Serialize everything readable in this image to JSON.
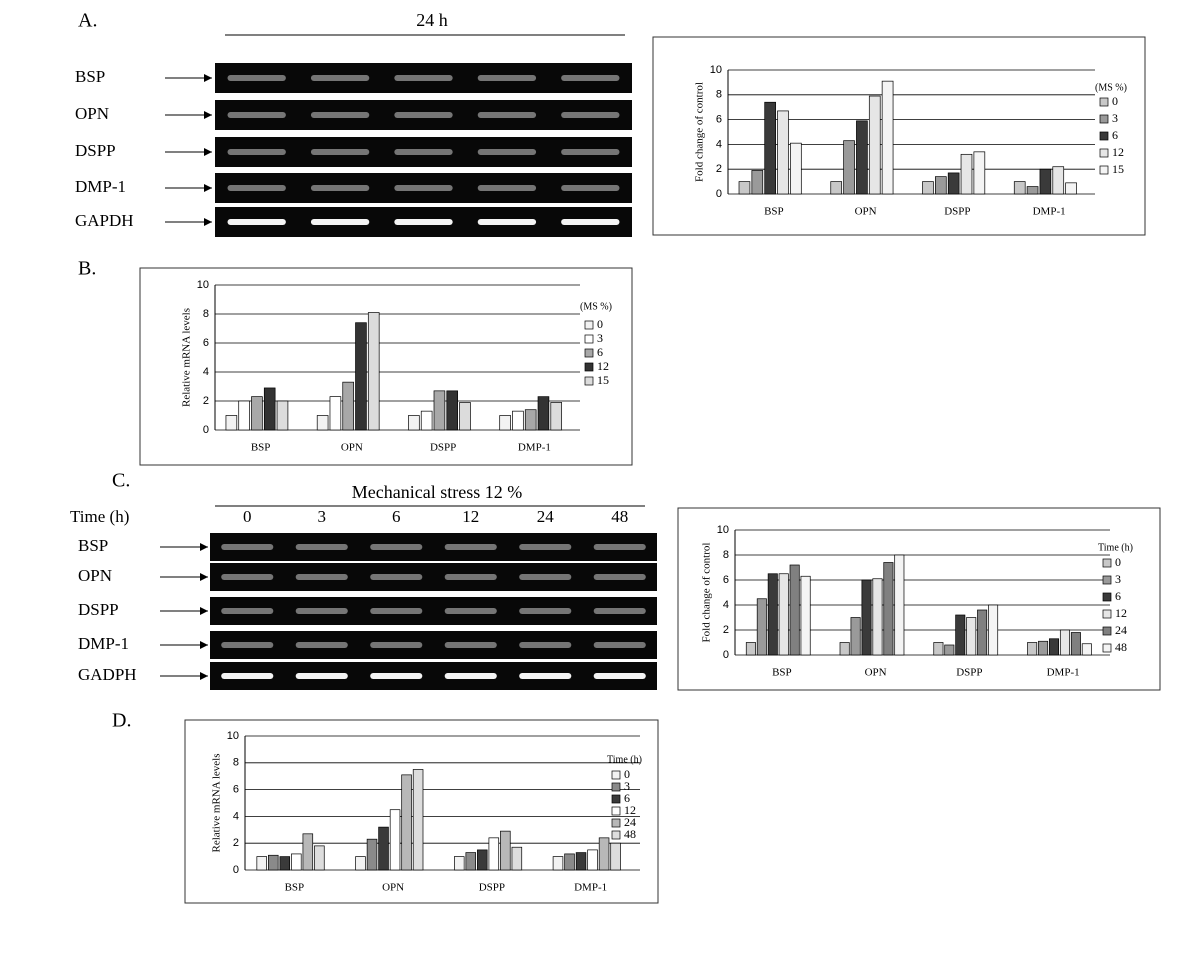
{
  "panels": {
    "a": "A.",
    "b": "B.",
    "c": "C.",
    "d": "D."
  },
  "gel_a": {
    "title": "24 h",
    "rows": [
      "BSP",
      "OPN",
      "DSPP",
      "DMP-1",
      "GAPDH"
    ]
  },
  "gel_c": {
    "title": "Mechanical stress  12 %",
    "time_label": "Time (h)",
    "lanes": [
      "0",
      "3",
      "6",
      "12",
      "24",
      "48"
    ],
    "rows": [
      "BSP",
      "OPN",
      "DSPP",
      "DMP-1",
      "GADPH"
    ]
  },
  "chart_data": [
    {
      "type": "bar",
      "ylabel": "Fold change of control",
      "legend_title": "(MS %)",
      "categories": [
        "BSP",
        "OPN",
        "DSPP",
        "DMP-1"
      ],
      "ylim": [
        0,
        10
      ],
      "yticks": [
        0,
        2,
        4,
        6,
        8,
        10
      ],
      "grid": true,
      "series": [
        {
          "name": "0",
          "color": "#c8c8c8",
          "values": [
            1,
            1,
            1,
            1
          ]
        },
        {
          "name": "3",
          "color": "#9a9a9a",
          "values": [
            1.9,
            4.3,
            1.4,
            0.6
          ]
        },
        {
          "name": "6",
          "color": "#3a3a3a",
          "values": [
            7.4,
            5.9,
            1.7,
            2.0
          ]
        },
        {
          "name": "12",
          "color": "#e6e6e6",
          "values": [
            6.7,
            7.9,
            3.2,
            2.2
          ]
        },
        {
          "name": "15",
          "color": "#f4f4f4",
          "values": [
            4.1,
            9.1,
            3.4,
            0.9
          ]
        }
      ]
    },
    {
      "type": "bar",
      "ylabel": "Relative mRNA levels",
      "legend_title": "(MS %)",
      "categories": [
        "BSP",
        "OPN",
        "DSPP",
        "DMP-1"
      ],
      "ylim": [
        0,
        10
      ],
      "yticks": [
        0,
        2,
        4,
        6,
        8,
        10
      ],
      "grid": true,
      "series": [
        {
          "name": "0",
          "color": "#f2f2f2",
          "values": [
            1,
            1,
            1,
            1
          ]
        },
        {
          "name": "3",
          "color": "#ffffff",
          "values": [
            2.0,
            2.3,
            1.3,
            1.3
          ]
        },
        {
          "name": "6",
          "color": "#a8a8a8",
          "values": [
            2.3,
            3.3,
            2.7,
            1.4
          ]
        },
        {
          "name": "12",
          "color": "#333333",
          "values": [
            2.9,
            7.4,
            2.7,
            2.3
          ]
        },
        {
          "name": "15",
          "color": "#dcdcdc",
          "values": [
            2.0,
            8.1,
            1.9,
            1.9
          ]
        }
      ]
    },
    {
      "type": "bar",
      "ylabel": "Fold change of control",
      "legend_title": "Time (h)",
      "categories": [
        "BSP",
        "OPN",
        "DSPP",
        "DMP-1"
      ],
      "ylim": [
        0,
        10
      ],
      "yticks": [
        0,
        2,
        4,
        6,
        8,
        10
      ],
      "grid": true,
      "series": [
        {
          "name": "0",
          "color": "#c8c8c8",
          "values": [
            1,
            1,
            1,
            1
          ]
        },
        {
          "name": "3",
          "color": "#9a9a9a",
          "values": [
            4.5,
            3.0,
            0.8,
            1.1
          ]
        },
        {
          "name": "6",
          "color": "#3a3a3a",
          "values": [
            6.5,
            6.0,
            3.2,
            1.3
          ]
        },
        {
          "name": "12",
          "color": "#e6e6e6",
          "values": [
            6.5,
            6.1,
            3.0,
            2.0
          ]
        },
        {
          "name": "24",
          "color": "#808080",
          "values": [
            7.2,
            7.4,
            3.6,
            1.8
          ]
        },
        {
          "name": "48",
          "color": "#f4f4f4",
          "values": [
            6.3,
            8.0,
            4.0,
            0.9
          ]
        }
      ]
    },
    {
      "type": "bar",
      "ylabel": "Relative mRNA levels",
      "legend_title": "Time (h)",
      "categories": [
        "BSP",
        "OPN",
        "DSPP",
        "DMP-1"
      ],
      "ylim": [
        0,
        10
      ],
      "yticks": [
        0,
        2,
        4,
        6,
        8,
        10
      ],
      "grid": true,
      "series": [
        {
          "name": "0",
          "color": "#f2f2f2",
          "values": [
            1,
            1,
            1,
            1
          ]
        },
        {
          "name": "3",
          "color": "#8a8a8a",
          "values": [
            1.1,
            2.3,
            1.3,
            1.2
          ]
        },
        {
          "name": "6",
          "color": "#3a3a3a",
          "values": [
            1.0,
            3.2,
            1.5,
            1.3
          ]
        },
        {
          "name": "12",
          "color": "#ffffff",
          "values": [
            1.2,
            4.5,
            2.4,
            1.5
          ]
        },
        {
          "name": "24",
          "color": "#b8b8b8",
          "values": [
            2.7,
            7.1,
            2.9,
            2.4
          ]
        },
        {
          "name": "48",
          "color": "#dddddd",
          "values": [
            1.8,
            7.5,
            1.7,
            2.0
          ]
        }
      ]
    }
  ]
}
